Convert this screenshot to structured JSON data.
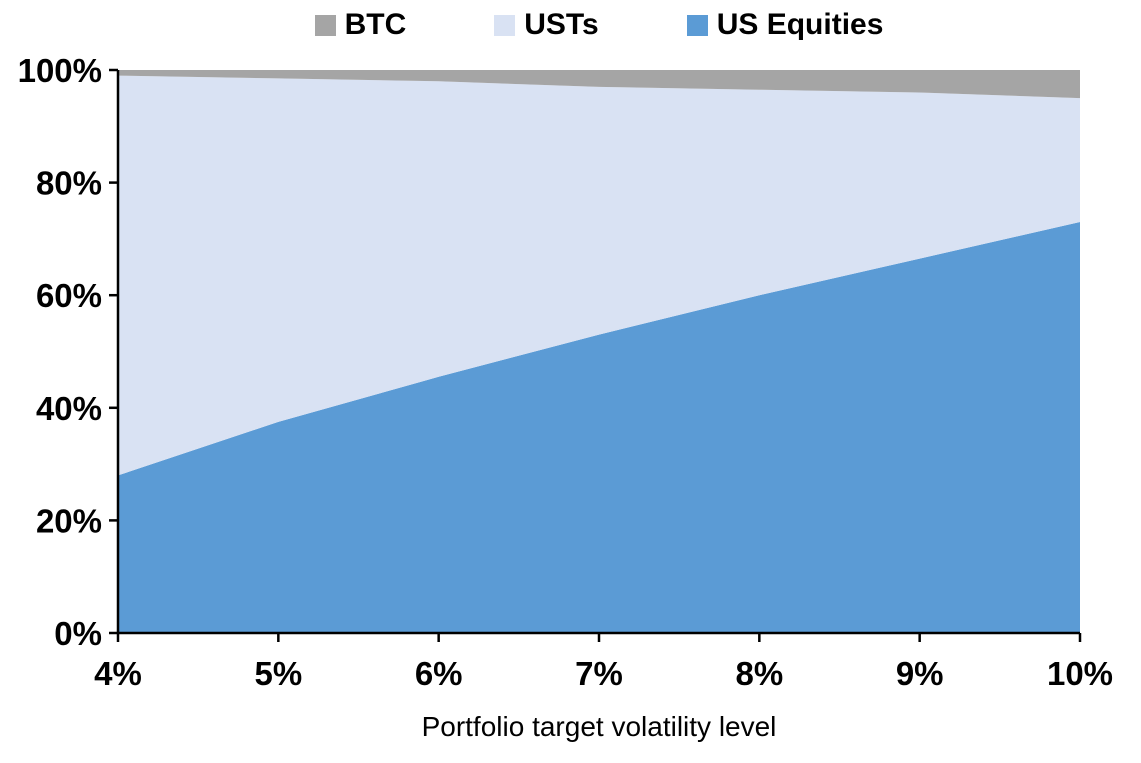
{
  "chart_data": {
    "type": "area",
    "stacked": true,
    "stack_total": 100,
    "xlabel": "Portfolio target volatility level",
    "ylabel": "",
    "x": [
      4,
      5,
      6,
      7,
      8,
      9,
      10
    ],
    "x_tick_labels": [
      "4%",
      "5%",
      "6%",
      "7%",
      "8%",
      "9%",
      "10%"
    ],
    "ylim": [
      0,
      100
    ],
    "y_ticks": [
      0,
      20,
      40,
      60,
      80,
      100
    ],
    "y_tick_labels": [
      "0%",
      "20%",
      "40%",
      "60%",
      "80%",
      "100%"
    ],
    "series": [
      {
        "name": "US Equities",
        "color": "#5B9BD5",
        "values": [
          28,
          37.5,
          45.5,
          53,
          60,
          66.5,
          73
        ]
      },
      {
        "name": "USTs",
        "color": "#D9E2F3",
        "values": [
          71,
          61,
          52.5,
          44,
          36.5,
          29.5,
          22
        ]
      },
      {
        "name": "BTC",
        "color": "#A5A5A5",
        "values": [
          1,
          1.5,
          2,
          3,
          3.5,
          4,
          5
        ]
      }
    ],
    "legend": [
      {
        "label": "BTC",
        "color": "#A5A5A5"
      },
      {
        "label": "USTs",
        "color": "#D9E2F3"
      },
      {
        "label": "US Equities",
        "color": "#5B9BD5"
      }
    ],
    "legend_position": "top",
    "grid": false,
    "axis_color": "#000000",
    "background_color": "#FFFFFF"
  }
}
